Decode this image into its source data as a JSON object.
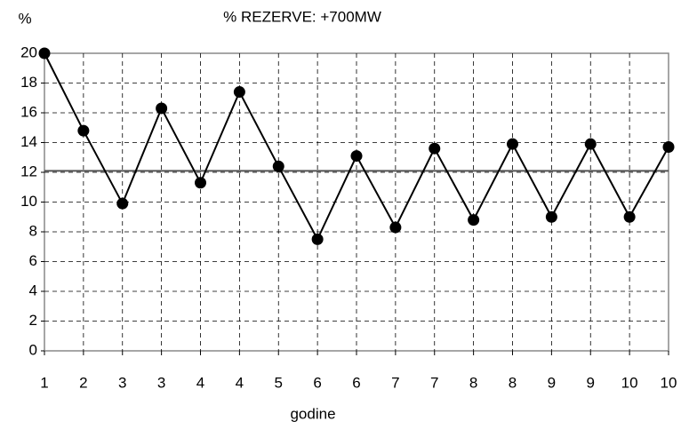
{
  "chart_data": {
    "type": "line",
    "title": "% REZERVE: +700MW",
    "y_label": "%",
    "x_label": "godine",
    "categories": [
      "1",
      "2",
      "3",
      "3",
      "4",
      "4",
      "5",
      "6",
      "6",
      "7",
      "7",
      "8",
      "8",
      "9",
      "9",
      "10",
      "10"
    ],
    "series": [
      {
        "name": null,
        "color": "#000000",
        "values": [
          20,
          14.8,
          9.9,
          16.3,
          11.3,
          17.4,
          12.4,
          7.5,
          13.1,
          8.3,
          13.6,
          8.8,
          13.9,
          9.0,
          13.9,
          9.0,
          13.7
        ]
      }
    ],
    "reference_line": 12.1,
    "ylim": [
      0,
      20
    ],
    "yticks": [
      0,
      2,
      4,
      6,
      8,
      10,
      12,
      14,
      16,
      18,
      20
    ],
    "grid": true
  }
}
